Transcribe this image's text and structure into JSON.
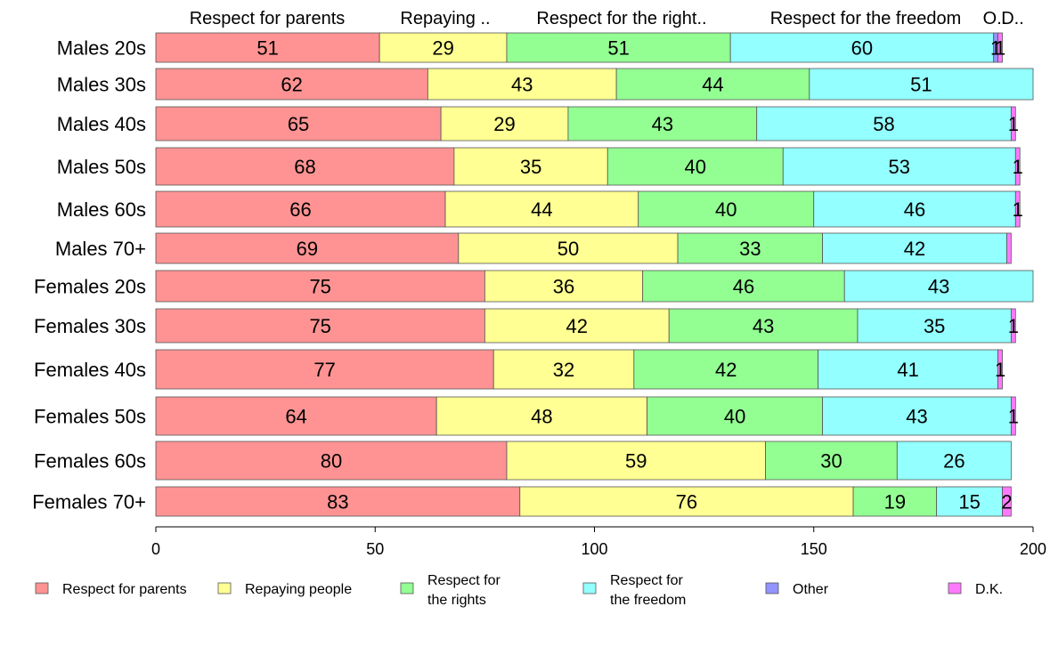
{
  "chart_data": {
    "type": "bar",
    "orientation": "horizontal",
    "stacked": true,
    "categories": [
      "Males 20s",
      "Males 30s",
      "Males 40s",
      "Males 50s",
      "Males 60s",
      "Males 70+",
      "Females 20s",
      "Females 30s",
      "Females 40s",
      "Females 50s",
      "Females 60s",
      "Females 70+"
    ],
    "series": [
      {
        "name": "Respect for parents",
        "header": "Respect for parents",
        "color": "#ff9393",
        "values": [
          51,
          62,
          65,
          68,
          66,
          69,
          75,
          75,
          77,
          64,
          80,
          83
        ]
      },
      {
        "name": "Repaying people",
        "header": "Repaying ..",
        "color": "#ffff93",
        "values": [
          29,
          43,
          29,
          35,
          44,
          50,
          36,
          42,
          32,
          48,
          59,
          76
        ]
      },
      {
        "name": "Respect for the rights",
        "header": "Respect for the right..",
        "color": "#93ff93",
        "values": [
          51,
          44,
          43,
          40,
          40,
          33,
          46,
          43,
          42,
          40,
          30,
          19
        ]
      },
      {
        "name": "Respect for the freedom",
        "header": "Respect for the freedom",
        "color": "#93ffff",
        "values": [
          60,
          51,
          58,
          53,
          46,
          42,
          43,
          35,
          41,
          43,
          26,
          15
        ]
      },
      {
        "name": "Other",
        "header": "O..",
        "color": "#9393ff",
        "values": [
          1,
          0,
          0,
          0,
          0,
          0,
          0,
          0,
          0,
          0,
          0,
          0
        ]
      },
      {
        "name": "D.K.",
        "header": "D..",
        "color": "#ff79ff",
        "values": [
          1,
          0,
          1,
          1,
          1,
          1,
          0,
          1,
          1,
          1,
          0,
          2
        ]
      }
    ],
    "value_labels": [
      [
        "51",
        "29",
        "51",
        "60",
        "1",
        "1"
      ],
      [
        "62",
        "43",
        "44",
        "51",
        "",
        ""
      ],
      [
        "65",
        "29",
        "43",
        "58",
        "",
        "1"
      ],
      [
        "68",
        "35",
        "40",
        "53",
        "",
        "1"
      ],
      [
        "66",
        "44",
        "40",
        "46",
        "",
        "1"
      ],
      [
        "69",
        "50",
        "33",
        "42",
        "",
        ""
      ],
      [
        "75",
        "36",
        "46",
        "43",
        "",
        ""
      ],
      [
        "75",
        "42",
        "43",
        "35",
        "",
        "1"
      ],
      [
        "77",
        "32",
        "42",
        "41",
        "",
        "1"
      ],
      [
        "64",
        "48",
        "40",
        "43",
        "",
        "1"
      ],
      [
        "80",
        "59",
        "30",
        "26",
        "",
        ""
      ],
      [
        "83",
        "76",
        "19",
        "15",
        "",
        "2"
      ]
    ],
    "xlim": [
      0,
      200
    ],
    "xticks": [
      "0",
      "50",
      "100",
      "150",
      "200"
    ],
    "legend": {
      "position": "bottom",
      "items": [
        {
          "lines": [
            "Respect for parents"
          ],
          "color": "#ff9393"
        },
        {
          "lines": [
            "Repaying people"
          ],
          "color": "#ffff93"
        },
        {
          "lines": [
            "Respect for",
            "the rights"
          ],
          "color": "#93ff93"
        },
        {
          "lines": [
            "Respect for",
            "the freedom"
          ],
          "color": "#93ffff"
        },
        {
          "lines": [
            "Other"
          ],
          "color": "#9393ff"
        },
        {
          "lines": [
            "D.K."
          ],
          "color": "#ff79ff"
        }
      ]
    },
    "grid": false
  }
}
